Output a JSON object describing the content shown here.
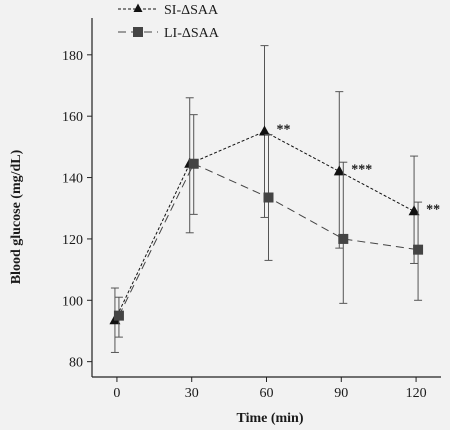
{
  "chart_data": {
    "type": "line",
    "title": "",
    "xlabel": "Time (min)",
    "ylabel": "Blood glucose (mg/dL)",
    "x": [
      0,
      30,
      60,
      90,
      120
    ],
    "xlim": [
      -10,
      130
    ],
    "ylim": [
      75,
      192
    ],
    "yticks": [
      80,
      100,
      120,
      140,
      160,
      180
    ],
    "grid": false,
    "legend_position": "top-left",
    "series": [
      {
        "name": "SI-ΔSAA",
        "marker": "triangle",
        "line_style": "dashed-short",
        "color": "#111111",
        "values": [
          93.5,
          144.5,
          155,
          142,
          129
        ],
        "error_low": [
          83,
          122,
          127,
          117,
          112
        ],
        "error_high": [
          104,
          166,
          183,
          168,
          147
        ]
      },
      {
        "name": "LI-ΔSAA",
        "marker": "square",
        "line_style": "dashed-long",
        "color": "#444444",
        "values": [
          95,
          144.5,
          133.5,
          120,
          116.5
        ],
        "error_low": [
          88,
          128,
          113,
          99,
          100
        ],
        "error_high": [
          101,
          160.5,
          154,
          145,
          132
        ]
      }
    ],
    "annotations": [
      {
        "x": 60,
        "y": 155,
        "text": "**"
      },
      {
        "x": 90,
        "y": 142,
        "text": "***"
      },
      {
        "x": 120,
        "y": 129,
        "text": "**"
      }
    ]
  }
}
